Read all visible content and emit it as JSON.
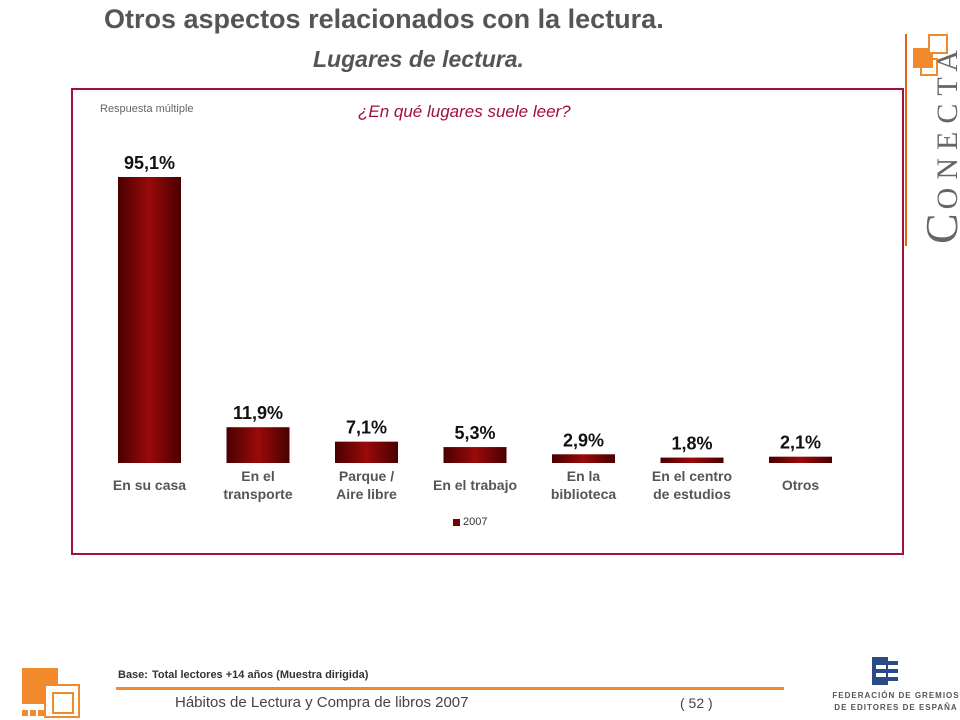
{
  "header": {
    "title": "Otros aspectos relacionados con la lectura.",
    "subtitle": "Lugares de lectura."
  },
  "chart_note": "Respuesta múltiple",
  "question": "¿En qué lugares suele leer?",
  "chart_data": {
    "type": "bar",
    "title": "¿En qué lugares suele leer?",
    "categories": [
      [
        "En su casa"
      ],
      [
        "En el",
        "transporte"
      ],
      [
        "Parque /",
        "Aire libre"
      ],
      [
        "En el trabajo"
      ],
      [
        "En la",
        "biblioteca"
      ],
      [
        "En el centro",
        "de estudios"
      ],
      [
        "Otros"
      ]
    ],
    "series": [
      {
        "name": "2007",
        "values": [
          95.1,
          11.9,
          7.1,
          5.3,
          2.9,
          1.8,
          2.1
        ],
        "labels": [
          "95,1%",
          "11,9%",
          "7,1%",
          "5,3%",
          "2,9%",
          "1,8%",
          "2,1%"
        ]
      }
    ],
    "legend": "bottom-center",
    "grid": false,
    "colors": {
      "bar_dark": "#5a0000",
      "bar_mid": "#9a0a0a"
    }
  },
  "brand": {
    "word": "ONECTA",
    "initial": "C"
  },
  "footer": {
    "base_label": "Base:",
    "base_text": "Total lectores +14 años (Muestra dirigida)",
    "report_title": "Hábitos de Lectura y Compra de libros 2007",
    "page": "( 52 )",
    "publisher_line1": "FEDERACIÓN DE GREMIOS",
    "publisher_line2": "DE EDITORES DE ESPAÑA"
  },
  "colors": {
    "accent": "#a0103a",
    "orange": "#f08a2c"
  }
}
